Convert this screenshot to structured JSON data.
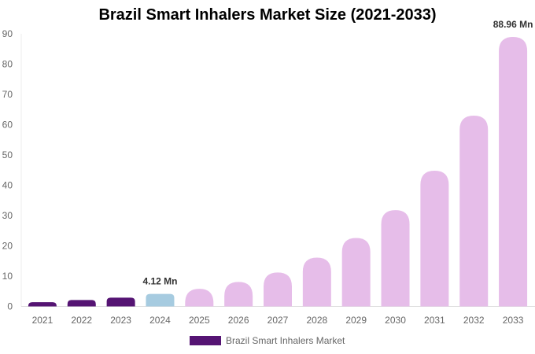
{
  "chart_data": {
    "type": "bar",
    "title": "Brazil Smart Inhalers Market Size (2021-2033)",
    "categories": [
      "2021",
      "2022",
      "2023",
      "2024",
      "2025",
      "2026",
      "2027",
      "2028",
      "2029",
      "2030",
      "2031",
      "2032",
      "2033"
    ],
    "series": [
      {
        "name": "Brazil Smart Inhalers Market",
        "values": [
          1.4,
          2.1,
          2.9,
          4.12,
          5.8,
          8.1,
          11.2,
          16.1,
          22.6,
          31.8,
          44.8,
          63.0,
          88.96
        ]
      }
    ],
    "data_labels": {
      "3": "4.12 Mn",
      "12": "88.96 Mn"
    },
    "ylim": [
      0,
      90
    ],
    "yticks": [
      0,
      10,
      20,
      30,
      40,
      50,
      60,
      70,
      80,
      90
    ],
    "grid": false,
    "legend_position": "bottom",
    "colors": {
      "historical": "#551473",
      "current": "#a6cbe0",
      "forecast": "#e6bde9"
    },
    "xlabel": "",
    "ylabel": ""
  }
}
